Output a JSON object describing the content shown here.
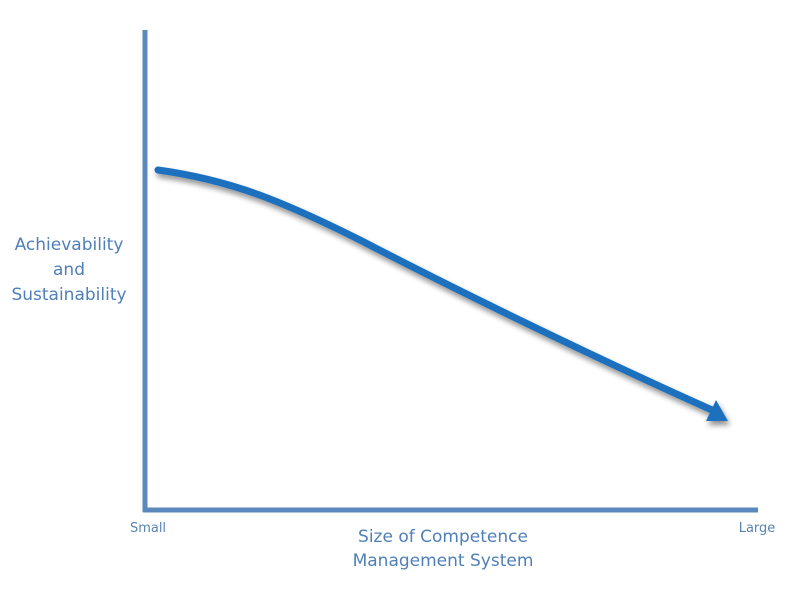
{
  "y_axis": {
    "label_lines": [
      "Achievability",
      "and",
      "Sustainability"
    ]
  },
  "x_axis": {
    "label_lines": [
      "Size of Competence",
      "Management System"
    ],
    "start_label": "Small",
    "end_label": "Large"
  }
}
